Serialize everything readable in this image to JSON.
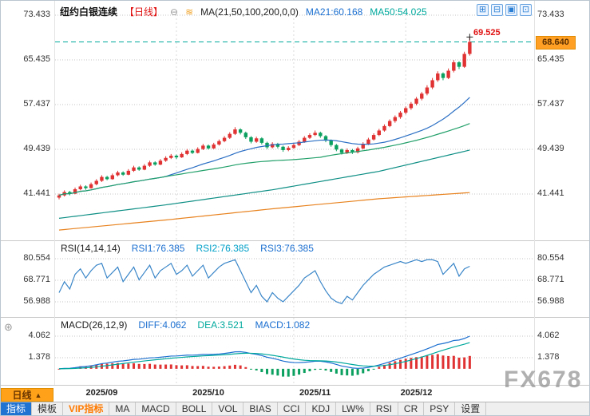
{
  "header": {
    "title": "纽约白银连续",
    "period_tag": "【日线】",
    "collapse_icon": "⊖",
    "ma_icon": "≋",
    "ma_settings": "MA(21,50,100,200,0,0)",
    "ma21": "MA21:60.168",
    "ma50": "MA50:54.025",
    "layout_icons": [
      {
        "name": "grid-layout-icon",
        "glyph": "⊞"
      },
      {
        "name": "split-layout-icon",
        "glyph": "⊟"
      },
      {
        "name": "single-pane-icon",
        "glyph": "▣"
      },
      {
        "name": "expand-pane-icon",
        "glyph": "⊡"
      }
    ]
  },
  "price_markers": {
    "high": "69.525",
    "current": "68.640"
  },
  "rsi_header": {
    "title": "RSI(14,14,14)",
    "rsi1": "RSI1:76.385",
    "rsi2": "RSI2:76.385",
    "rsi3": "RSI3:76.385"
  },
  "macd_header": {
    "title": "MACD(26,12,9)",
    "diff": "DIFF:4.062",
    "dea": "DEA:3.521",
    "macd": "MACD:1.082",
    "panel_icon": "⊛"
  },
  "watermark": "FX678",
  "toolbar": {
    "period": "日线",
    "period_arrow": "▲",
    "tabs": [
      {
        "label": "指标",
        "state": "active"
      },
      {
        "label": "模板",
        "state": "normal"
      },
      {
        "label": "VIP指标",
        "state": "vip"
      },
      {
        "label": "MA",
        "state": "normal"
      },
      {
        "label": "MACD",
        "state": "normal"
      },
      {
        "label": "BOLL",
        "state": "normal"
      },
      {
        "label": "VOL",
        "state": "normal"
      },
      {
        "label": "BIAS",
        "state": "normal"
      },
      {
        "label": "CCI",
        "state": "normal"
      },
      {
        "label": "KDJ",
        "state": "normal"
      },
      {
        "label": "LW%",
        "state": "normal"
      },
      {
        "label": "RSI",
        "state": "normal"
      },
      {
        "label": "CR",
        "state": "normal"
      },
      {
        "label": "PSY",
        "state": "normal"
      },
      {
        "label": "设置",
        "state": "normal"
      }
    ]
  },
  "colors": {
    "up": "#e03232",
    "down": "#0ba05f",
    "ma21": "#2b6fc4",
    "ma50": "#22a06a",
    "ma100": "#0e8f85",
    "ma200": "#e8821e",
    "rsi_line": "#3a86c8",
    "diff_line": "#1b6fd0",
    "dea_line": "#00a99d",
    "dashed_line": "#00a99d",
    "tag_bg": "#ffa024"
  },
  "chart_data": [
    {
      "type": "candlestick",
      "title": "纽约白银连续 日线",
      "ylim": [
        33,
        75
      ],
      "y_ticks": [
        {
          "label": "73.433",
          "value": 73.433
        },
        {
          "label": "65.435",
          "value": 65.435
        },
        {
          "label": "57.437",
          "value": 57.437
        },
        {
          "label": "49.439",
          "value": 49.439
        },
        {
          "label": "41.441",
          "value": 41.441
        }
      ],
      "x_ticks": [
        {
          "label": "2025/09",
          "index": 8
        },
        {
          "label": "2025/10",
          "index": 28
        },
        {
          "label": "2025/11",
          "index": 48
        },
        {
          "label": "2025/12",
          "index": 67
        }
      ],
      "month_start_indices": [
        22,
        44,
        65
      ],
      "last_close": 68.64,
      "high_marker": 69.525,
      "ma_windows": [
        {
          "name": "MA21",
          "window": 21
        },
        {
          "name": "MA50",
          "window": 50
        }
      ],
      "ma_approx": [
        {
          "name": "MA100",
          "points": [
            [
              0,
              37.1
            ],
            [
              20,
              39.5
            ],
            [
              40,
              42.2
            ],
            [
              60,
              45.5
            ],
            [
              77,
              49.3
            ]
          ]
        },
        {
          "name": "MA200",
          "points": [
            [
              0,
              35.0
            ],
            [
              20,
              36.8
            ],
            [
              40,
              38.8
            ],
            [
              60,
              40.6
            ],
            [
              77,
              41.7
            ]
          ]
        }
      ],
      "ohlc": [
        [
          40.8,
          41.5,
          40.5,
          41.2
        ],
        [
          41.2,
          42.1,
          41.0,
          41.8
        ],
        [
          41.8,
          42.0,
          41.2,
          41.5
        ],
        [
          41.5,
          42.6,
          41.4,
          42.3
        ],
        [
          42.3,
          43.1,
          42.1,
          42.8
        ],
        [
          42.8,
          43.0,
          42.2,
          42.5
        ],
        [
          42.5,
          43.5,
          42.4,
          43.2
        ],
        [
          43.2,
          44.1,
          43.0,
          43.8
        ],
        [
          43.8,
          44.8,
          43.6,
          44.5
        ],
        [
          44.5,
          44.7,
          43.9,
          44.1
        ],
        [
          44.1,
          45.1,
          44.0,
          44.8
        ],
        [
          44.8,
          45.6,
          44.6,
          45.3
        ],
        [
          45.3,
          45.5,
          44.7,
          44.9
        ],
        [
          44.9,
          45.9,
          44.8,
          45.6
        ],
        [
          45.6,
          46.5,
          45.4,
          46.2
        ],
        [
          46.2,
          46.4,
          45.6,
          45.8
        ],
        [
          45.8,
          46.8,
          45.7,
          46.5
        ],
        [
          46.5,
          47.4,
          46.3,
          47.1
        ],
        [
          47.1,
          47.3,
          46.5,
          46.7
        ],
        [
          46.7,
          47.7,
          46.6,
          47.4
        ],
        [
          47.4,
          48.2,
          47.2,
          47.9
        ],
        [
          47.9,
          48.6,
          47.7,
          48.3
        ],
        [
          48.3,
          48.5,
          47.7,
          48.0
        ],
        [
          48.0,
          48.9,
          47.9,
          48.6
        ],
        [
          48.6,
          49.5,
          48.4,
          49.2
        ],
        [
          49.2,
          49.4,
          48.6,
          48.8
        ],
        [
          48.8,
          49.8,
          48.7,
          49.5
        ],
        [
          49.5,
          50.4,
          49.3,
          50.1
        ],
        [
          50.1,
          50.3,
          49.4,
          49.6
        ],
        [
          49.6,
          50.6,
          49.5,
          50.3
        ],
        [
          50.3,
          51.2,
          50.1,
          50.9
        ],
        [
          50.9,
          51.8,
          50.7,
          51.5
        ],
        [
          51.5,
          52.5,
          51.3,
          52.2
        ],
        [
          52.2,
          53.4,
          52.0,
          53.0
        ],
        [
          53.0,
          53.2,
          52.1,
          52.4
        ],
        [
          52.4,
          52.6,
          51.3,
          51.6
        ],
        [
          51.6,
          51.8,
          50.5,
          50.8
        ],
        [
          50.8,
          51.7,
          50.6,
          51.4
        ],
        [
          51.4,
          51.6,
          50.3,
          50.6
        ],
        [
          50.6,
          50.8,
          49.5,
          49.8
        ],
        [
          49.8,
          50.7,
          49.6,
          50.4
        ],
        [
          50.4,
          50.6,
          49.6,
          49.9
        ],
        [
          49.9,
          50.1,
          49.0,
          49.3
        ],
        [
          49.3,
          50.0,
          49.1,
          49.7
        ],
        [
          49.7,
          50.5,
          49.5,
          50.2
        ],
        [
          50.2,
          51.1,
          50.0,
          50.8
        ],
        [
          50.8,
          51.8,
          50.6,
          51.5
        ],
        [
          51.5,
          52.3,
          51.3,
          52.0
        ],
        [
          52.0,
          52.8,
          51.8,
          52.4
        ],
        [
          52.4,
          52.6,
          51.5,
          51.8
        ],
        [
          51.8,
          52.0,
          50.7,
          51.0
        ],
        [
          51.0,
          51.2,
          49.9,
          50.2
        ],
        [
          50.2,
          50.4,
          49.1,
          49.4
        ],
        [
          49.4,
          49.6,
          48.5,
          48.8
        ],
        [
          48.8,
          49.6,
          48.6,
          49.3
        ],
        [
          49.3,
          49.5,
          48.6,
          48.9
        ],
        [
          48.9,
          49.9,
          48.7,
          49.6
        ],
        [
          49.6,
          50.7,
          49.4,
          50.4
        ],
        [
          50.4,
          51.5,
          50.2,
          51.2
        ],
        [
          51.2,
          52.3,
          51.0,
          52.0
        ],
        [
          52.0,
          53.1,
          51.8,
          52.8
        ],
        [
          52.8,
          53.9,
          52.6,
          53.6
        ],
        [
          53.6,
          54.8,
          53.4,
          54.5
        ],
        [
          54.5,
          55.5,
          54.2,
          55.2
        ],
        [
          55.2,
          56.3,
          54.9,
          56.0
        ],
        [
          56.0,
          57.1,
          55.7,
          56.8
        ],
        [
          56.8,
          57.9,
          56.5,
          57.6
        ],
        [
          57.6,
          58.8,
          57.3,
          58.5
        ],
        [
          58.5,
          59.7,
          58.2,
          59.4
        ],
        [
          59.4,
          60.9,
          59.1,
          60.5
        ],
        [
          60.5,
          62.2,
          60.2,
          61.8
        ],
        [
          61.8,
          63.4,
          61.5,
          63.0
        ],
        [
          63.0,
          63.2,
          61.8,
          62.2
        ],
        [
          62.2,
          63.9,
          62.0,
          63.5
        ],
        [
          63.5,
          65.4,
          63.2,
          65.0
        ],
        [
          65.0,
          65.2,
          63.8,
          64.2
        ],
        [
          64.2,
          66.9,
          64.0,
          66.5
        ],
        [
          66.5,
          69.525,
          66.2,
          68.64
        ]
      ]
    },
    {
      "type": "line",
      "name": "RSI(14,14,14)",
      "ylim": [
        50,
        86
      ],
      "y_ticks": [
        {
          "label": "80.554",
          "value": 80.554
        },
        {
          "label": "68.771",
          "value": 68.771
        },
        {
          "label": "56.988",
          "value": 56.988
        }
      ],
      "values": [
        62,
        68,
        64,
        72,
        75,
        70,
        74,
        77,
        78,
        70,
        73,
        76,
        68,
        72,
        76,
        69,
        73,
        77,
        70,
        74,
        76,
        78,
        72,
        74,
        77,
        71,
        74,
        77,
        70,
        73,
        76,
        78,
        79,
        80,
        74,
        68,
        62,
        66,
        60,
        57,
        62,
        59,
        57,
        60,
        63,
        66,
        70,
        72,
        74,
        68,
        63,
        59,
        57,
        56,
        60,
        58,
        62,
        66,
        69,
        72,
        74,
        76,
        77,
        78,
        79,
        78,
        79,
        80,
        79,
        80,
        80,
        79,
        72,
        75,
        78,
        71,
        75,
        76.4
      ]
    },
    {
      "type": "bar",
      "name": "MACD(26,12,9)",
      "params": {
        "fast": 12,
        "slow": 26,
        "signal": 9
      },
      "y_ticks": [
        {
          "label": "4.062",
          "value": 4.062
        },
        {
          "label": "1.378",
          "value": 1.378
        }
      ],
      "diff_last": 4.062,
      "dea_last": 3.521,
      "hist_last": 1.082
    }
  ]
}
